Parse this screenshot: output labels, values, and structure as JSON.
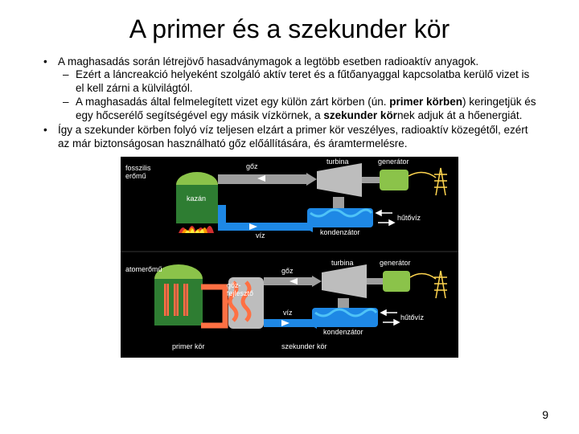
{
  "slide": {
    "title": "A primer és a szekunder kör",
    "bullets": [
      {
        "text": "A maghasadás során létrejövő hasadványmagok a legtöbb esetben radioaktív anyagok.",
        "sub": [
          "Ezért a láncreakció helyeként szolgáló aktív teret és a fűtőanyaggal kapcsolatba kerülő vizet is el kell zárni a külvilágtól.",
          "A maghasadás által felmelegített vizet egy külön zárt körben (ún. <b>primer körben</b>) keringetjük és egy hőcserélő segítségével egy másik vízkörnek, a <b>szekunder kör</b>nek adjuk át a hőenergiát."
        ]
      },
      {
        "text": "Így a szekunder körben folyó víz teljesen elzárt a primer kör veszélyes, radioaktív közegétől, ezért az már biztonságosan használható gőz előállítására, és áramtermelésre.",
        "sub": []
      }
    ],
    "page_number": "9"
  },
  "diagram": {
    "bg": "#000000",
    "colors": {
      "plant_green": "#2e7d32",
      "dome_lightgreen": "#8bc34a",
      "steam": "#9e9e9e",
      "pipe_grey": "#bdbdbd",
      "water_blue": "#1e88e5",
      "condenser_blue": "#4fc3f7",
      "flame_red": "#d32f2f",
      "flame_orange": "#ff9800",
      "flame_yellow": "#ffeb3b",
      "generator_green": "#8bc34a",
      "pylon_yellow": "#ffd54f",
      "nuke_orange": "#ff7043",
      "nuke_stripe": "#6d4c41",
      "arrow": "#ffffff"
    },
    "labels": {
      "fossil_top": "fosszilis\nerőmű",
      "atom_bottom": "atomerőmű",
      "goz": "gőz",
      "turbina": "turbina",
      "generator": "generátor",
      "kazan": "kazán",
      "kondenzator": "kondenzátor",
      "hutoviz": "hűtővíz",
      "viz": "víz",
      "goz_fejleszto": "gőz-\nfejlesztő",
      "primer_kor": "primer kör",
      "szekunder_kor": "szekunder kör"
    }
  }
}
